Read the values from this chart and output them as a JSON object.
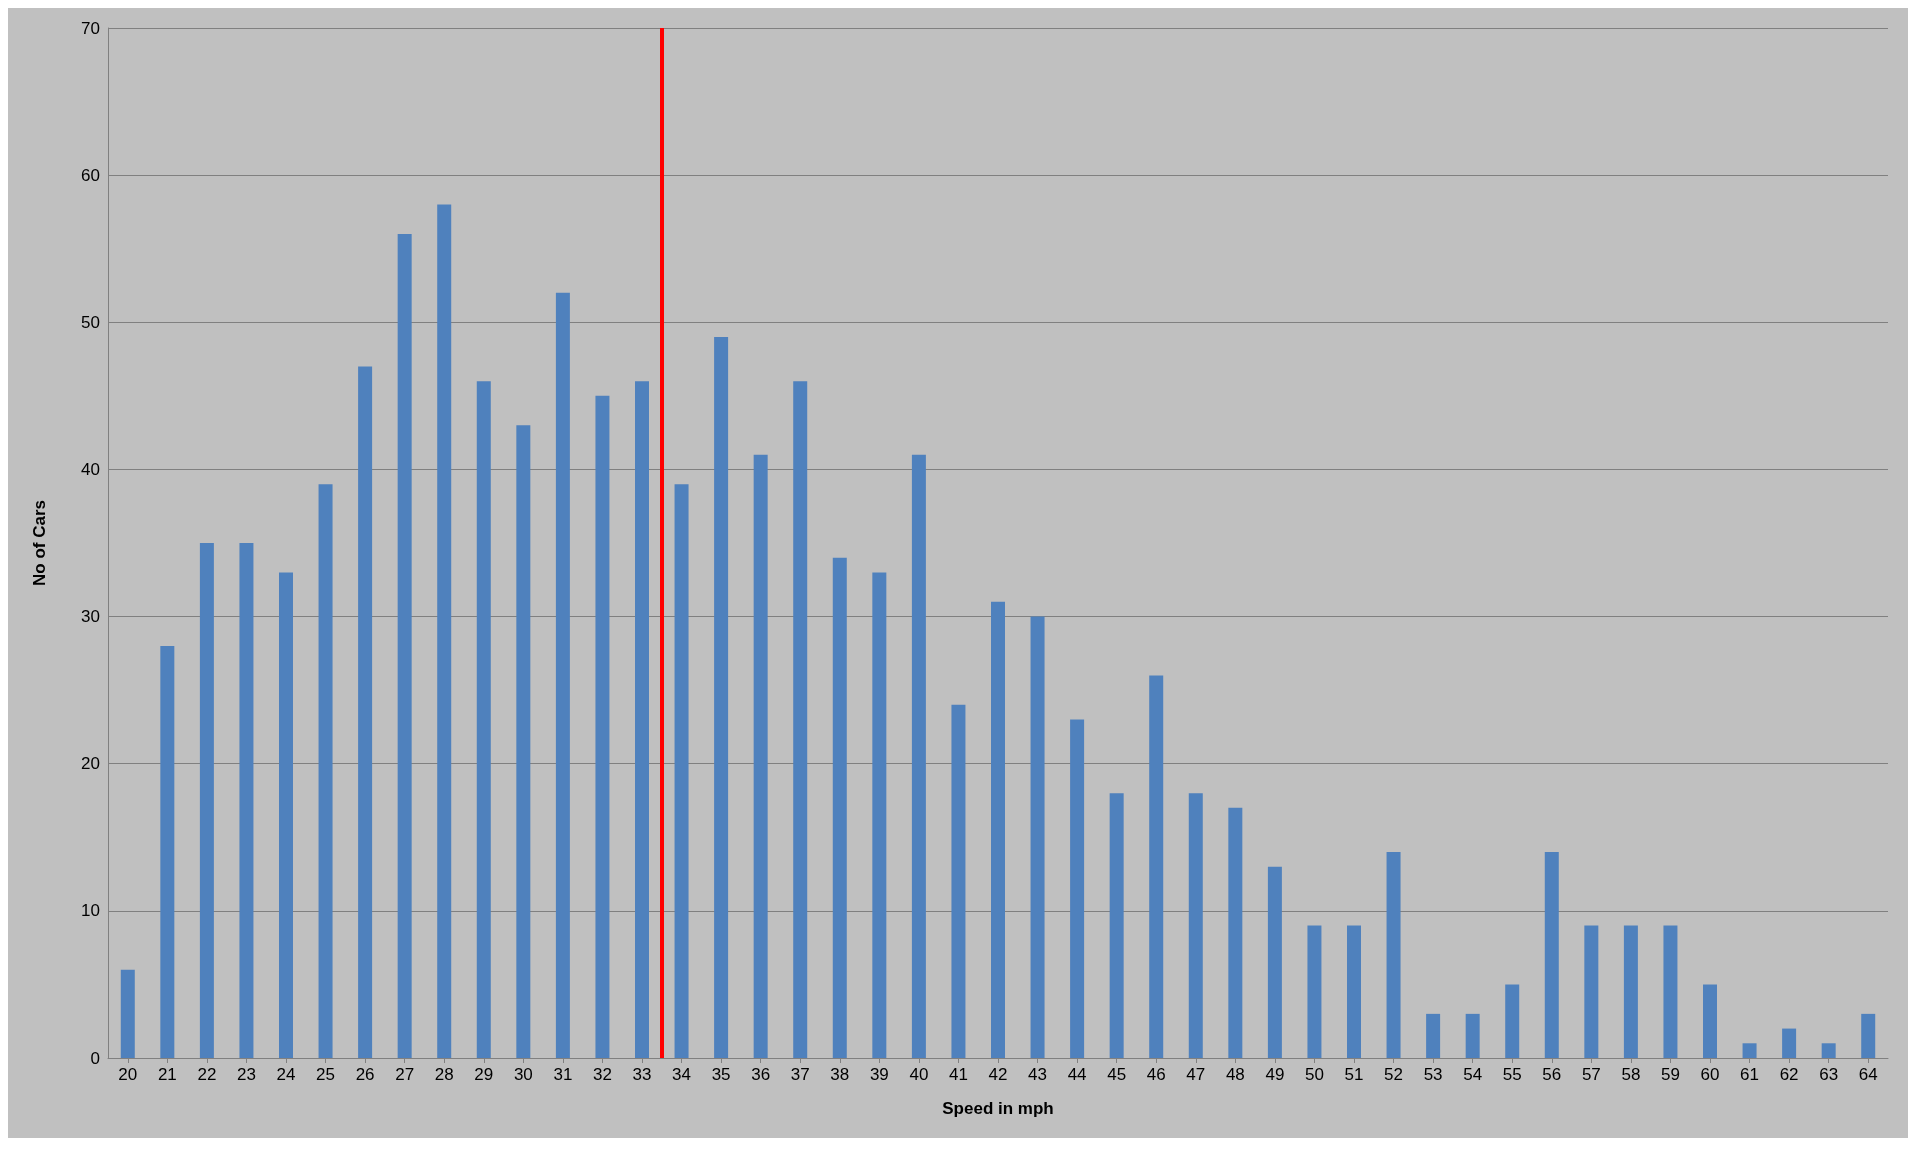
{
  "chart_data": {
    "type": "bar",
    "xlabel": "Speed in mph",
    "ylabel": "No of Cars",
    "x": [
      20,
      21,
      22,
      23,
      24,
      25,
      26,
      27,
      28,
      29,
      30,
      31,
      32,
      33,
      34,
      35,
      36,
      37,
      38,
      39,
      40,
      41,
      42,
      43,
      44,
      45,
      46,
      47,
      48,
      49,
      50,
      51,
      52,
      53,
      54,
      55,
      56,
      57,
      58,
      59,
      60,
      61,
      62,
      63,
      64
    ],
    "values": [
      6,
      28,
      35,
      35,
      33,
      39,
      47,
      56,
      58,
      46,
      43,
      52,
      45,
      46,
      39,
      49,
      41,
      46,
      34,
      33,
      41,
      24,
      31,
      30,
      23,
      18,
      26,
      18,
      17,
      13,
      9,
      9,
      14,
      3,
      3,
      5,
      14,
      9,
      9,
      9,
      5,
      1,
      2,
      1,
      3
    ],
    "color": "#4f81bd",
    "xlim": [
      19.5,
      64.5
    ],
    "xticks": [
      20,
      21,
      22,
      23,
      24,
      25,
      26,
      27,
      28,
      29,
      30,
      31,
      32,
      33,
      34,
      35,
      36,
      37,
      38,
      39,
      40,
      41,
      42,
      43,
      44,
      45,
      46,
      47,
      48,
      49,
      50,
      51,
      52,
      53,
      54,
      55,
      56,
      57,
      58,
      59,
      60,
      61,
      62,
      63,
      64
    ],
    "ylim": [
      0,
      70
    ],
    "yticks": [
      0,
      10,
      20,
      30,
      40,
      50,
      60,
      70
    ],
    "grid": "y",
    "ref_lines": [
      {
        "axis": "x",
        "value": 33.5,
        "color": "#ff0000"
      }
    ]
  }
}
